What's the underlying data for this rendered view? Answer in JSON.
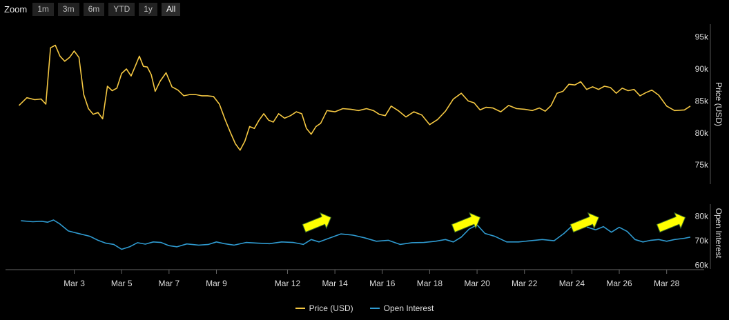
{
  "zoom": {
    "label": "Zoom",
    "buttons": [
      "1m",
      "3m",
      "6m",
      "YTD",
      "1y",
      "All"
    ],
    "active": "All"
  },
  "chart_data": {
    "type": "line",
    "x_axis": {
      "type": "date",
      "range": [
        "Mar 1",
        "Mar 29"
      ],
      "tick_labels": [
        "Mar 3",
        "Mar 5",
        "Mar 7",
        "Mar 9",
        "Mar 12",
        "Mar 14",
        "Mar 16",
        "Mar 18",
        "Mar 20",
        "Mar 22",
        "Mar 24",
        "Mar 26",
        "Mar 28"
      ],
      "tick_days": [
        3,
        5,
        7,
        9,
        12,
        14,
        16,
        18,
        20,
        22,
        24,
        26,
        28
      ]
    },
    "price_axis": {
      "title": "Price (USD)",
      "ylim": [
        72000,
        97000
      ],
      "ticks": [
        75000,
        80000,
        85000,
        90000,
        95000
      ],
      "tick_labels": [
        "75k",
        "80k",
        "85k",
        "90k",
        "95k"
      ]
    },
    "oi_axis": {
      "title": "Open Interest",
      "ylim": [
        59000,
        85000
      ],
      "ticks": [
        60000,
        70000,
        80000
      ],
      "tick_labels": [
        "60k",
        "70k",
        "80k"
      ]
    },
    "series": [
      {
        "name": "Price (USD)",
        "color": "#f5c842",
        "axis": "price",
        "points": [
          [
            "Mar 1",
            84300
          ],
          [
            "Mar 1",
            85500
          ],
          [
            "Mar 1",
            85200
          ],
          [
            "Mar 2",
            85300
          ],
          [
            "Mar 2",
            84500
          ],
          [
            "Mar 2",
            93300
          ],
          [
            "Mar 2",
            93700
          ],
          [
            "Mar 2",
            92000
          ],
          [
            "Mar 3",
            91200
          ],
          [
            "Mar 3",
            91800
          ],
          [
            "Mar 3",
            92800
          ],
          [
            "Mar 3",
            91800
          ],
          [
            "Mar 3",
            86000
          ],
          [
            "Mar 4",
            83800
          ],
          [
            "Mar 4",
            82900
          ],
          [
            "Mar 4",
            83200
          ],
          [
            "Mar 4",
            82200
          ],
          [
            "Mar 4",
            87300
          ],
          [
            "Mar 5",
            86600
          ],
          [
            "Mar 5",
            87000
          ],
          [
            "Mar 5",
            89300
          ],
          [
            "Mar 5",
            90000
          ],
          [
            "Mar 5",
            88900
          ],
          [
            "Mar 6",
            90500
          ],
          [
            "Mar 6",
            92000
          ],
          [
            "Mar 6",
            90400
          ],
          [
            "Mar 6",
            90300
          ],
          [
            "Mar 6",
            89100
          ],
          [
            "Mar 6",
            86500
          ],
          [
            "Mar 7",
            88100
          ],
          [
            "Mar 7",
            89400
          ],
          [
            "Mar 7",
            87200
          ],
          [
            "Mar 7",
            86700
          ],
          [
            "Mar 8",
            85800
          ],
          [
            "Mar 8",
            86000
          ],
          [
            "Mar 8",
            86000
          ],
          [
            "Mar 8",
            85800
          ],
          [
            "Mar 9",
            85800
          ],
          [
            "Mar 9",
            85700
          ],
          [
            "Mar 9",
            84500
          ],
          [
            "Mar 9",
            82000
          ],
          [
            "Mar 10",
            80000
          ],
          [
            "Mar 10",
            78300
          ],
          [
            "Mar 10",
            77300
          ],
          [
            "Mar 10",
            78700
          ],
          [
            "Mar 10",
            81000
          ],
          [
            "Mar 11",
            80700
          ],
          [
            "Mar 11",
            82000
          ],
          [
            "Mar 11",
            83000
          ],
          [
            "Mar 11",
            82000
          ],
          [
            "Mar 11",
            81700
          ],
          [
            "Mar 12",
            83000
          ],
          [
            "Mar 12",
            82300
          ],
          [
            "Mar 12",
            82700
          ],
          [
            "Mar 12",
            83300
          ],
          [
            "Mar 13",
            83000
          ],
          [
            "Mar 13",
            80700
          ],
          [
            "Mar 13",
            79800
          ],
          [
            "Mar 13",
            81000
          ],
          [
            "Mar 13",
            81500
          ],
          [
            "Mar 14",
            83500
          ],
          [
            "Mar 14",
            83300
          ],
          [
            "Mar 14",
            83800
          ],
          [
            "Mar 15",
            83700
          ],
          [
            "Mar 15",
            83500
          ],
          [
            "Mar 15",
            83800
          ],
          [
            "Mar 16",
            83500
          ],
          [
            "Mar 16",
            82900
          ],
          [
            "Mar 16",
            82700
          ],
          [
            "Mar 16",
            84200
          ],
          [
            "Mar 17",
            83500
          ],
          [
            "Mar 17",
            82500
          ],
          [
            "Mar 17",
            83300
          ],
          [
            "Mar 18",
            82800
          ],
          [
            "Mar 18",
            81300
          ],
          [
            "Mar 18",
            82100
          ],
          [
            "Mar 19",
            83400
          ],
          [
            "Mar 19",
            85300
          ],
          [
            "Mar 19",
            86200
          ],
          [
            "Mar 20",
            85000
          ],
          [
            "Mar 20",
            84700
          ],
          [
            "Mar 20",
            83600
          ],
          [
            "Mar 20",
            84000
          ],
          [
            "Mar 21",
            83900
          ],
          [
            "Mar 21",
            83300
          ],
          [
            "Mar 21",
            84300
          ],
          [
            "Mar 22",
            83800
          ],
          [
            "Mar 22",
            83700
          ],
          [
            "Mar 22",
            83500
          ],
          [
            "Mar 23",
            83900
          ],
          [
            "Mar 23",
            83400
          ],
          [
            "Mar 23",
            84300
          ],
          [
            "Mar 23",
            86200
          ],
          [
            "Mar 24",
            86500
          ],
          [
            "Mar 24",
            87600
          ],
          [
            "Mar 24",
            87500
          ],
          [
            "Mar 24",
            88000
          ],
          [
            "Mar 25",
            86800
          ],
          [
            "Mar 25",
            87200
          ],
          [
            "Mar 25",
            86800
          ],
          [
            "Mar 25",
            87300
          ],
          [
            "Mar 26",
            87100
          ],
          [
            "Mar 26",
            86200
          ],
          [
            "Mar 26",
            87000
          ],
          [
            "Mar 26",
            86600
          ],
          [
            "Mar 27",
            86800
          ],
          [
            "Mar 27",
            85800
          ],
          [
            "Mar 27",
            86300
          ],
          [
            "Mar 27",
            86700
          ],
          [
            "Mar 28",
            85900
          ],
          [
            "Mar 28",
            84200
          ],
          [
            "Mar 28",
            83500
          ],
          [
            "Mar 29",
            83600
          ],
          [
            "Mar 29",
            84200
          ]
        ]
      },
      {
        "name": "Open Interest",
        "color": "#2f9bd1",
        "axis": "oi",
        "points": [
          [
            "Mar 1",
            78200
          ],
          [
            "Mar 1",
            77800
          ],
          [
            "Mar 2",
            78000
          ],
          [
            "Mar 2",
            77600
          ],
          [
            "Mar 2",
            78500
          ],
          [
            "Mar 2",
            77000
          ],
          [
            "Mar 3",
            74000
          ],
          [
            "Mar 3",
            72800
          ],
          [
            "Mar 4",
            71800
          ],
          [
            "Mar 4",
            70200
          ],
          [
            "Mar 4",
            69000
          ],
          [
            "Mar 5",
            68500
          ],
          [
            "Mar 5",
            66500
          ],
          [
            "Mar 5",
            67500
          ],
          [
            "Mar 6",
            69200
          ],
          [
            "Mar 6",
            68600
          ],
          [
            "Mar 6",
            69500
          ],
          [
            "Mar 7",
            69300
          ],
          [
            "Mar 7",
            68000
          ],
          [
            "Mar 7",
            67500
          ],
          [
            "Mar 8",
            68700
          ],
          [
            "Mar 8",
            68200
          ],
          [
            "Mar 9",
            68500
          ],
          [
            "Mar 9",
            69500
          ],
          [
            "Mar 9",
            68800
          ],
          [
            "Mar 10",
            68200
          ],
          [
            "Mar 10",
            69300
          ],
          [
            "Mar 11",
            69000
          ],
          [
            "Mar 11",
            68800
          ],
          [
            "Mar 12",
            69500
          ],
          [
            "Mar 12",
            69300
          ],
          [
            "Mar 13",
            68500
          ],
          [
            "Mar 13",
            70500
          ],
          [
            "Mar 13",
            69500
          ],
          [
            "Mar 14",
            71000
          ],
          [
            "Mar 14",
            72800
          ],
          [
            "Mar 15",
            72300
          ],
          [
            "Mar 15",
            71200
          ],
          [
            "Mar 16",
            69800
          ],
          [
            "Mar 16",
            70200
          ],
          [
            "Mar 17",
            68500
          ],
          [
            "Mar 17",
            69200
          ],
          [
            "Mar 18",
            69300
          ],
          [
            "Mar 18",
            69800
          ],
          [
            "Mar 19",
            70500
          ],
          [
            "Mar 19",
            69500
          ],
          [
            "Mar 19",
            71500
          ],
          [
            "Mar 20",
            74800
          ],
          [
            "Mar 20",
            76500
          ],
          [
            "Mar 20",
            73000
          ],
          [
            "Mar 21",
            71800
          ],
          [
            "Mar 21",
            69500
          ],
          [
            "Mar 22",
            69500
          ],
          [
            "Mar 22",
            70000
          ],
          [
            "Mar 23",
            70500
          ],
          [
            "Mar 23",
            70000
          ],
          [
            "Mar 24",
            73000
          ],
          [
            "Mar 24",
            76000
          ],
          [
            "Mar 24",
            78200
          ],
          [
            "Mar 25",
            75500
          ],
          [
            "Mar 25",
            74500
          ],
          [
            "Mar 25",
            75800
          ],
          [
            "Mar 26",
            73500
          ],
          [
            "Mar 26",
            75500
          ],
          [
            "Mar 26",
            73800
          ],
          [
            "Mar 27",
            70500
          ],
          [
            "Mar 27",
            69500
          ],
          [
            "Mar 27",
            70200
          ],
          [
            "Mar 28",
            70500
          ],
          [
            "Mar 28",
            69800
          ],
          [
            "Mar 28",
            70500
          ],
          [
            "Mar 29",
            71000
          ],
          [
            "Mar 29",
            71500
          ]
        ]
      }
    ],
    "annotations": [
      {
        "type": "arrow",
        "color": "#ffff00",
        "x": "Mar 13"
      },
      {
        "type": "arrow",
        "color": "#ffff00",
        "x": "Mar 19"
      },
      {
        "type": "arrow",
        "color": "#ffff00",
        "x": "Mar 24"
      },
      {
        "type": "arrow",
        "color": "#ffff00",
        "x": "Mar 28"
      }
    ],
    "legend": {
      "position": "bottom-center"
    },
    "grid": {
      "horizontal": false,
      "vertical": false
    }
  },
  "legend": {
    "items": [
      "Price (USD)",
      "Open Interest"
    ],
    "colors": [
      "#f5c842",
      "#2f9bd1"
    ]
  }
}
